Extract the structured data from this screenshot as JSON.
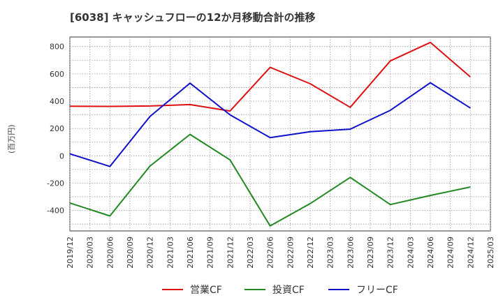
{
  "chart_data": {
    "type": "line",
    "title": "[6038]  キャッシュフローの12か月移動合計の推移",
    "ylabel": "(百万円)",
    "xlabel": "",
    "ylim": [
      -550,
      870
    ],
    "yticks": [
      -400,
      -200,
      0,
      200,
      400,
      600,
      800
    ],
    "xlim": [
      "2019/12",
      "2025/03"
    ],
    "categories": [
      "2019/12",
      "2020/03",
      "2020/06",
      "2020/09",
      "2020/12",
      "2021/03",
      "2021/06",
      "2021/09",
      "2021/12",
      "2022/03",
      "2022/06",
      "2022/09",
      "2022/12",
      "2023/03",
      "2023/06",
      "2023/09",
      "2023/12",
      "2024/03",
      "2024/06",
      "2024/09",
      "2024/12",
      "2025/03"
    ],
    "grid": true,
    "legend_position": "bottom",
    "series": [
      {
        "name": "営業CF",
        "color": "#dd1111",
        "points": [
          [
            "2019/12",
            363
          ],
          [
            "2020/06",
            362
          ],
          [
            "2020/12",
            365
          ],
          [
            "2021/06",
            375
          ],
          [
            "2021/12",
            328
          ],
          [
            "2022/06",
            648
          ],
          [
            "2022/12",
            528
          ],
          [
            "2023/06",
            355
          ],
          [
            "2023/12",
            695
          ],
          [
            "2024/06",
            830
          ],
          [
            "2024/12",
            578
          ]
        ]
      },
      {
        "name": "投資CF",
        "color": "#228822",
        "points": [
          [
            "2019/12",
            -345
          ],
          [
            "2020/06",
            -440
          ],
          [
            "2020/12",
            -75
          ],
          [
            "2021/06",
            157
          ],
          [
            "2021/12",
            -30
          ],
          [
            "2022/06",
            -513
          ],
          [
            "2022/12",
            -350
          ],
          [
            "2023/06",
            -158
          ],
          [
            "2023/12",
            -357
          ],
          [
            "2024/06",
            -290
          ],
          [
            "2024/12",
            -228
          ]
        ]
      },
      {
        "name": "フリーCF",
        "color": "#1111cc",
        "points": [
          [
            "2019/12",
            15
          ],
          [
            "2020/06",
            -78
          ],
          [
            "2020/12",
            288
          ],
          [
            "2021/06",
            532
          ],
          [
            "2021/12",
            300
          ],
          [
            "2022/06",
            133
          ],
          [
            "2022/12",
            177
          ],
          [
            "2023/06",
            195
          ],
          [
            "2023/12",
            333
          ],
          [
            "2024/06",
            535
          ],
          [
            "2024/12",
            350
          ]
        ]
      }
    ]
  }
}
